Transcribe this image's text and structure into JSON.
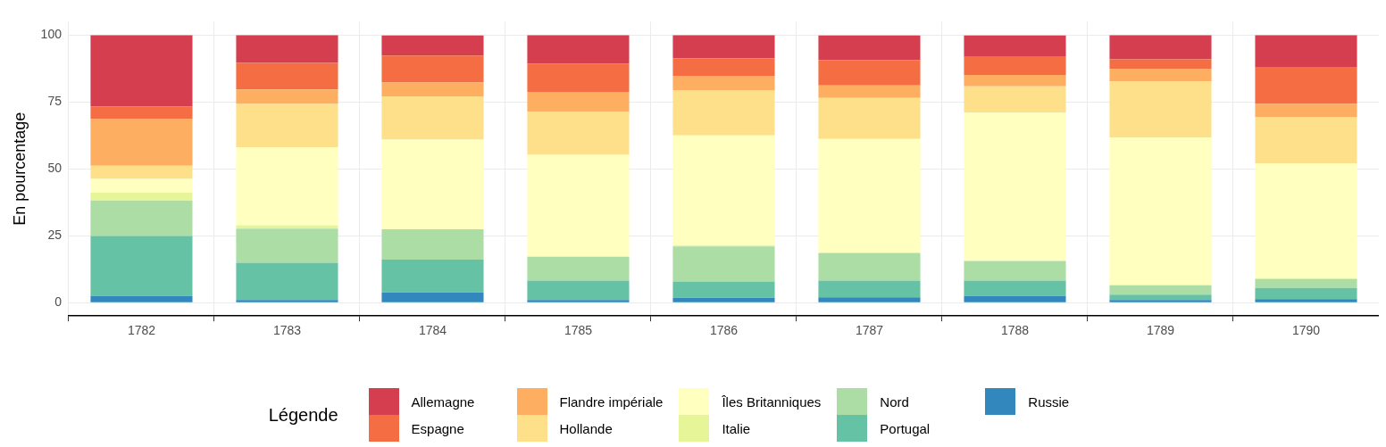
{
  "chart_data": {
    "type": "bar",
    "stacked": true,
    "ylabel": "En pourcentage",
    "legend_title": "Légende",
    "legend": "bottom",
    "grid": true,
    "categories": [
      "1782",
      "1783",
      "1784",
      "1785",
      "1786",
      "1787",
      "1788",
      "1789",
      "1790"
    ],
    "ylim": [
      -5,
      105
    ],
    "yticks": [
      0,
      25,
      50,
      75,
      100
    ],
    "series": [
      {
        "name": "Russie",
        "color": "#3288bd",
        "values": [
          2.5,
          1.0,
          3.8,
          1.0,
          1.8,
          2.0,
          2.5,
          1.0,
          1.3
        ]
      },
      {
        "name": "Portugal",
        "color": "#66c2a5",
        "values": [
          22.4,
          13.9,
          12.3,
          7.2,
          6.1,
          6.2,
          5.7,
          2.0,
          4.2
        ]
      },
      {
        "name": "Nord",
        "color": "#abdda4",
        "values": [
          13.3,
          12.8,
          11.3,
          8.9,
          13.1,
          10.4,
          7.4,
          3.5,
          3.3
        ]
      },
      {
        "name": "Italie",
        "color": "#e6f598",
        "values": [
          2.9,
          1.2,
          null,
          0.2,
          0.4,
          null,
          null,
          0.1,
          0.3
        ]
      },
      {
        "name": "Îles Britanniques",
        "color": "#ffffbf",
        "values": [
          5.2,
          29.2,
          33.5,
          38.0,
          41.1,
          42.6,
          55.4,
          55.2,
          43.0
        ]
      },
      {
        "name": "Hollande",
        "color": "#fee08b",
        "values": [
          4.9,
          16.2,
          16.2,
          16.1,
          16.8,
          15.3,
          9.9,
          20.9,
          17.2
        ]
      },
      {
        "name": "Flandre impériale",
        "color": "#fdae61",
        "values": [
          17.4,
          5.4,
          5.2,
          7.4,
          5.5,
          4.7,
          4.2,
          4.6,
          5.0
        ]
      },
      {
        "name": "Espagne",
        "color": "#f46d43",
        "values": [
          4.7,
          9.9,
          10.1,
          10.5,
          6.5,
          9.5,
          6.8,
          3.7,
          13.6
        ]
      },
      {
        "name": "Allemagne",
        "color": "#d53e4f",
        "values": [
          26.7,
          10.4,
          7.5,
          10.7,
          8.7,
          9.2,
          8.0,
          9.0,
          12.1
        ]
      }
    ]
  }
}
